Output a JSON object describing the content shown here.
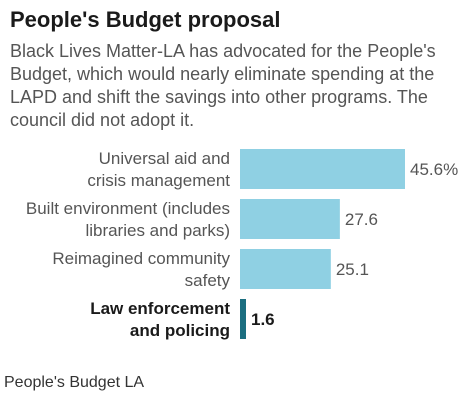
{
  "chart_data": {
    "type": "bar",
    "orientation": "horizontal",
    "title": "People's Budget proposal",
    "subtitle": "Black Lives Matter-LA has advocated for the People's Budget, which would nearly eliminate spending at the LAPD and shift the savings into other programs. The council did not adopt it.",
    "categories": [
      [
        "Universal aid and",
        "crisis management"
      ],
      [
        "Built environment (includes",
        "libraries and parks)"
      ],
      [
        "Reimagined community",
        "safety"
      ],
      [
        "Law enforcement",
        "and policing"
      ]
    ],
    "values": [
      45.6,
      27.6,
      25.1,
      1.6
    ],
    "value_labels": [
      "45.6%",
      "27.6",
      "25.1",
      "1.6"
    ],
    "highlight": [
      false,
      false,
      false,
      true
    ],
    "unit": "%",
    "xlim": [
      0,
      45.6
    ],
    "grid": false,
    "legend": "none",
    "colors": {
      "bar": "#8fd0e3",
      "highlight_bar": "#1b6e80"
    },
    "source": "People's Budget LA"
  }
}
